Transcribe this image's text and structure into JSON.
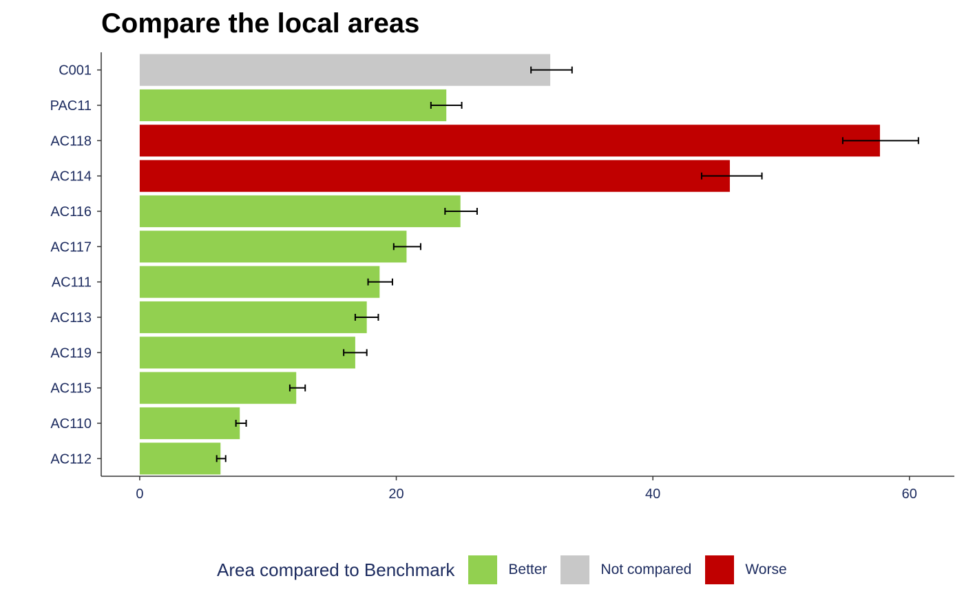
{
  "chart_data": {
    "type": "bar",
    "orientation": "horizontal",
    "title": "Compare the local areas",
    "xlabel": "",
    "ylabel": "",
    "xlim": [
      -3,
      63.5
    ],
    "xticks": [
      0,
      20,
      40,
      60
    ],
    "xtick_labels": [
      "0",
      "20",
      "40",
      "60"
    ],
    "grid": false,
    "categories": [
      "C001",
      "PAC11",
      "AC118",
      "AC114",
      "AC116",
      "AC117",
      "AC111",
      "AC113",
      "AC119",
      "AC115",
      "AC110",
      "AC112"
    ],
    "values": [
      32.0,
      23.9,
      57.7,
      46.0,
      25.0,
      20.8,
      18.7,
      17.7,
      16.8,
      12.2,
      7.8,
      6.3
    ],
    "ci_lower": [
      30.5,
      22.7,
      54.8,
      43.8,
      23.8,
      19.8,
      17.8,
      16.8,
      15.9,
      11.7,
      7.5,
      6.0
    ],
    "ci_upper": [
      33.7,
      25.1,
      60.7,
      48.5,
      26.3,
      21.9,
      19.7,
      18.6,
      17.7,
      12.9,
      8.3,
      6.7
    ],
    "groups": [
      "Not compared",
      "Better",
      "Worse",
      "Worse",
      "Better",
      "Better",
      "Better",
      "Better",
      "Better",
      "Better",
      "Better",
      "Better"
    ],
    "legend": {
      "title": "Area compared to Benchmark",
      "placement": "bottom",
      "items": [
        {
          "label": "Better",
          "color": "#92d050"
        },
        {
          "label": "Not compared",
          "color": "#c8c8c8"
        },
        {
          "label": "Worse",
          "color": "#c00000"
        }
      ]
    },
    "colors": {
      "Better": "#92d050",
      "Not compared": "#c8c8c8",
      "Worse": "#c00000",
      "axis": "#333333",
      "text": "#1b2a5e"
    }
  }
}
